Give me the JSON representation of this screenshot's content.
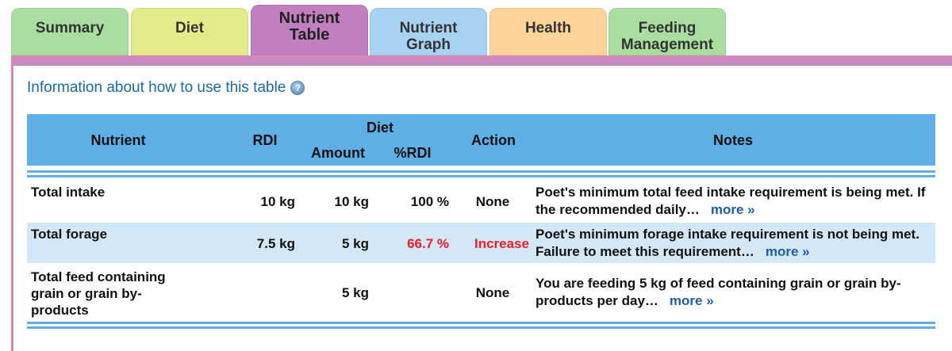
{
  "tabs": [
    {
      "label": "Summary",
      "color": "#a9dea0"
    },
    {
      "label": "Diet",
      "color": "#e4eb8a"
    },
    {
      "label": "Nutrient\nTable",
      "color": "#c17fc0",
      "active": true
    },
    {
      "label": "Nutrient\nGraph",
      "color": "#a8d2f2"
    },
    {
      "label": "Health",
      "color": "#fdd49a"
    },
    {
      "label": "Feeding\nManagement",
      "color": "#a9dea0"
    }
  ],
  "info": {
    "text": "Information about how to use this table",
    "icon": "help-icon"
  },
  "table": {
    "headers": {
      "nutrient": "Nutrient",
      "rdi": "RDI",
      "diet": "Diet",
      "amount": "Amount",
      "pct_rdi": "%RDI",
      "action": "Action",
      "notes": "Notes"
    },
    "rows": [
      {
        "nutrient": "Total intake",
        "rdi": "10 kg",
        "amount": "10 kg",
        "pct_rdi": "100 %",
        "action": "None",
        "notes": "Poet's minimum total feed intake requirement is being met. If the recommended daily…",
        "more": "more »"
      },
      {
        "nutrient": "Total forage",
        "rdi": "7.5 kg",
        "amount": "5 kg",
        "pct_rdi": "66.7 %",
        "action": "Increase",
        "notes": "Poet's minimum forage intake requirement is not being met. Failure to meet this requirement…",
        "more": "more »"
      },
      {
        "nutrient": "Total feed containing grain or grain by-products",
        "rdi": "",
        "amount": "5 kg",
        "pct_rdi": "",
        "action": "None",
        "notes": "You are feeding 5 kg of feed containing grain or grain by-products per day…",
        "more": "more »"
      }
    ]
  },
  "colors": {
    "header": "#5faee6",
    "alt_row": "#d3e7f7",
    "alert": "#ee1c24",
    "link": "#1c5fa8",
    "info": "#1a6aa8"
  }
}
